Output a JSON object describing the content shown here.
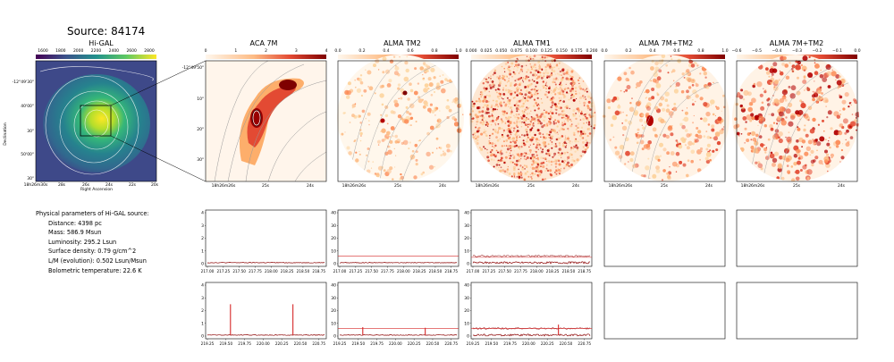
{
  "source_title": "Source: 84174",
  "panel_titles": {
    "higal": "Hi-GAL",
    "aca7m": "ACA 7M",
    "alma_tm2": "ALMA TM2",
    "alma_tm1": "ALMA TM1",
    "alma_7m_tm2_a": "ALMA 7M+TM2",
    "alma_7m_tm2_b": "ALMA 7M+TM2"
  },
  "colorbars": {
    "higal": [
      "1600",
      "1800",
      "2000",
      "2200",
      "2400",
      "2600",
      "2800"
    ],
    "aca7m": [
      "0",
      "1",
      "2",
      "3",
      "4"
    ],
    "alma_tm2": [
      "0.0",
      "0.2",
      "0.4",
      "0.6",
      "0.8",
      "1.0"
    ],
    "alma_tm1": [
      "0.000",
      "0.025",
      "0.050",
      "0.075",
      "0.100",
      "0.125",
      "0.150",
      "0.175",
      "0.200"
    ],
    "alma_7m_tm2_a": [
      "0.0",
      "0.2",
      "0.4",
      "0.6",
      "0.8",
      "1.0"
    ],
    "alma_7m_tm2_b": [
      "−0.6",
      "−0.5",
      "−0.4",
      "−0.3",
      "−0.2",
      "−0.1",
      "0.0"
    ]
  },
  "higal_axes": {
    "ylabel": "Declination",
    "xlabel": "Right Ascension",
    "yticks": [
      "-12°49'30\"",
      "40'00\"",
      "30\"",
      "50'00\"",
      "30\""
    ],
    "xticks": [
      "18h26m30s",
      "28s",
      "26s",
      "24s",
      "22s",
      "20s"
    ]
  },
  "aca_axes": {
    "yticks": [
      "-12°49'50\"",
      "10\"",
      "20\"",
      "30\""
    ],
    "xticks": [
      "18h26m26s",
      "25s",
      "24s"
    ]
  },
  "alma_axes": {
    "xticks": [
      "18h26m26s",
      "25s",
      "24s"
    ]
  },
  "physical": {
    "heading": "Physical parameters of Hi-GAL source:",
    "distance": "Distance: 4398 pc",
    "mass": "Mass: 586.9 Msun",
    "luminosity": "Luminosity: 295.2 Lsun",
    "surface_density": "Surface density: 0.79 g/cm^2",
    "lm": "L/M (evolution): 0.502 Lsun/Msun",
    "tbol": "Bolometric temperature: 22.6 K"
  },
  "colors": {
    "spectrum_line": "#8b0000",
    "guide_line": "#d62728",
    "viridis_low": "#440154",
    "viridis_high": "#fde725",
    "orrd_high": "#7f0000"
  },
  "chart_data": [
    {
      "type": "line",
      "panel": "ACA 7M spw1",
      "x": [
        217.0,
        217.25,
        217.5,
        217.75,
        218.0,
        218.25,
        218.5,
        218.75
      ],
      "xticks": [
        "217.00",
        "217.25",
        "217.50",
        "217.75",
        "218.00",
        "218.25",
        "218.50",
        "218.75"
      ],
      "yticks": [
        "0",
        "1",
        "2",
        "3",
        "4"
      ],
      "ylim": [
        0,
        4
      ],
      "series": [
        {
          "values": [
            0.05,
            0.08,
            0.06,
            0.04,
            0.07,
            0.05,
            0.06,
            0.05
          ]
        }
      ]
    },
    {
      "type": "line",
      "panel": "ALMA TM2 spw1",
      "x": [
        217.0,
        217.25,
        217.5,
        217.75,
        218.0,
        218.25,
        218.5,
        218.75
      ],
      "xticks": [
        "217.00",
        "217.25",
        "217.50",
        "217.75",
        "218.00",
        "218.25",
        "218.50",
        "218.75"
      ],
      "yticks": [
        "0",
        "10",
        "20",
        "30",
        "40"
      ],
      "ylim": [
        0,
        40
      ],
      "series": [
        {
          "values": [
            0.5,
            0.4,
            0.6,
            0.5,
            0.4,
            0.5,
            0.6,
            0.5
          ]
        }
      ],
      "hline": 6
    },
    {
      "type": "line",
      "panel": "ALMA TM1 spw1",
      "x": [
        217.0,
        217.25,
        217.5,
        217.75,
        218.0,
        218.25,
        218.5,
        218.75
      ],
      "xticks": [
        "217.00",
        "217.25",
        "217.50",
        "217.75",
        "218.00",
        "218.25",
        "218.50",
        "218.75"
      ],
      "yticks": [
        "0",
        "10",
        "20",
        "30",
        "40"
      ],
      "ylim": [
        0,
        40
      ],
      "series": [
        {
          "values": [
            1,
            1,
            1,
            1,
            1,
            1,
            1,
            1
          ]
        }
      ],
      "hline": 5
    },
    {
      "type": "line",
      "panel": "ACA 7M spw2",
      "x": [
        219.25,
        219.5,
        219.75,
        220.0,
        220.25,
        220.5,
        220.75
      ],
      "xticks": [
        "219.25",
        "219.50",
        "219.75",
        "220.00",
        "220.25",
        "220.50",
        "220.75"
      ],
      "yticks": [
        "0",
        "1",
        "2",
        "3",
        "4"
      ],
      "ylim": [
        0,
        4
      ],
      "peaks": [
        {
          "x": 219.56,
          "y": 2.5
        },
        {
          "x": 220.4,
          "y": 2.5
        }
      ]
    },
    {
      "type": "line",
      "panel": "ALMA TM2 spw2",
      "x": [
        219.25,
        219.5,
        219.75,
        220.0,
        220.25,
        220.5,
        220.75
      ],
      "xticks": [
        "219.25",
        "219.50",
        "219.75",
        "220.00",
        "220.25",
        "220.50",
        "220.75"
      ],
      "yticks": [
        "0",
        "10",
        "20",
        "30",
        "40"
      ],
      "ylim": [
        0,
        40
      ],
      "peaks": [
        {
          "x": 219.56,
          "y": 7
        },
        {
          "x": 220.4,
          "y": 6.5
        }
      ],
      "hline": 6
    },
    {
      "type": "line",
      "panel": "ALMA TM1 spw2",
      "x": [
        219.25,
        219.5,
        219.75,
        220.0,
        220.25,
        220.5,
        220.75
      ],
      "xticks": [
        "219.25",
        "219.50",
        "219.75",
        "220.00",
        "220.25",
        "220.50",
        "220.75"
      ],
      "yticks": [
        "0",
        "10",
        "20",
        "30",
        "40"
      ],
      "ylim": [
        0,
        40
      ],
      "peaks": [
        {
          "x": 220.4,
          "y": 9
        }
      ],
      "hline": 6
    }
  ]
}
